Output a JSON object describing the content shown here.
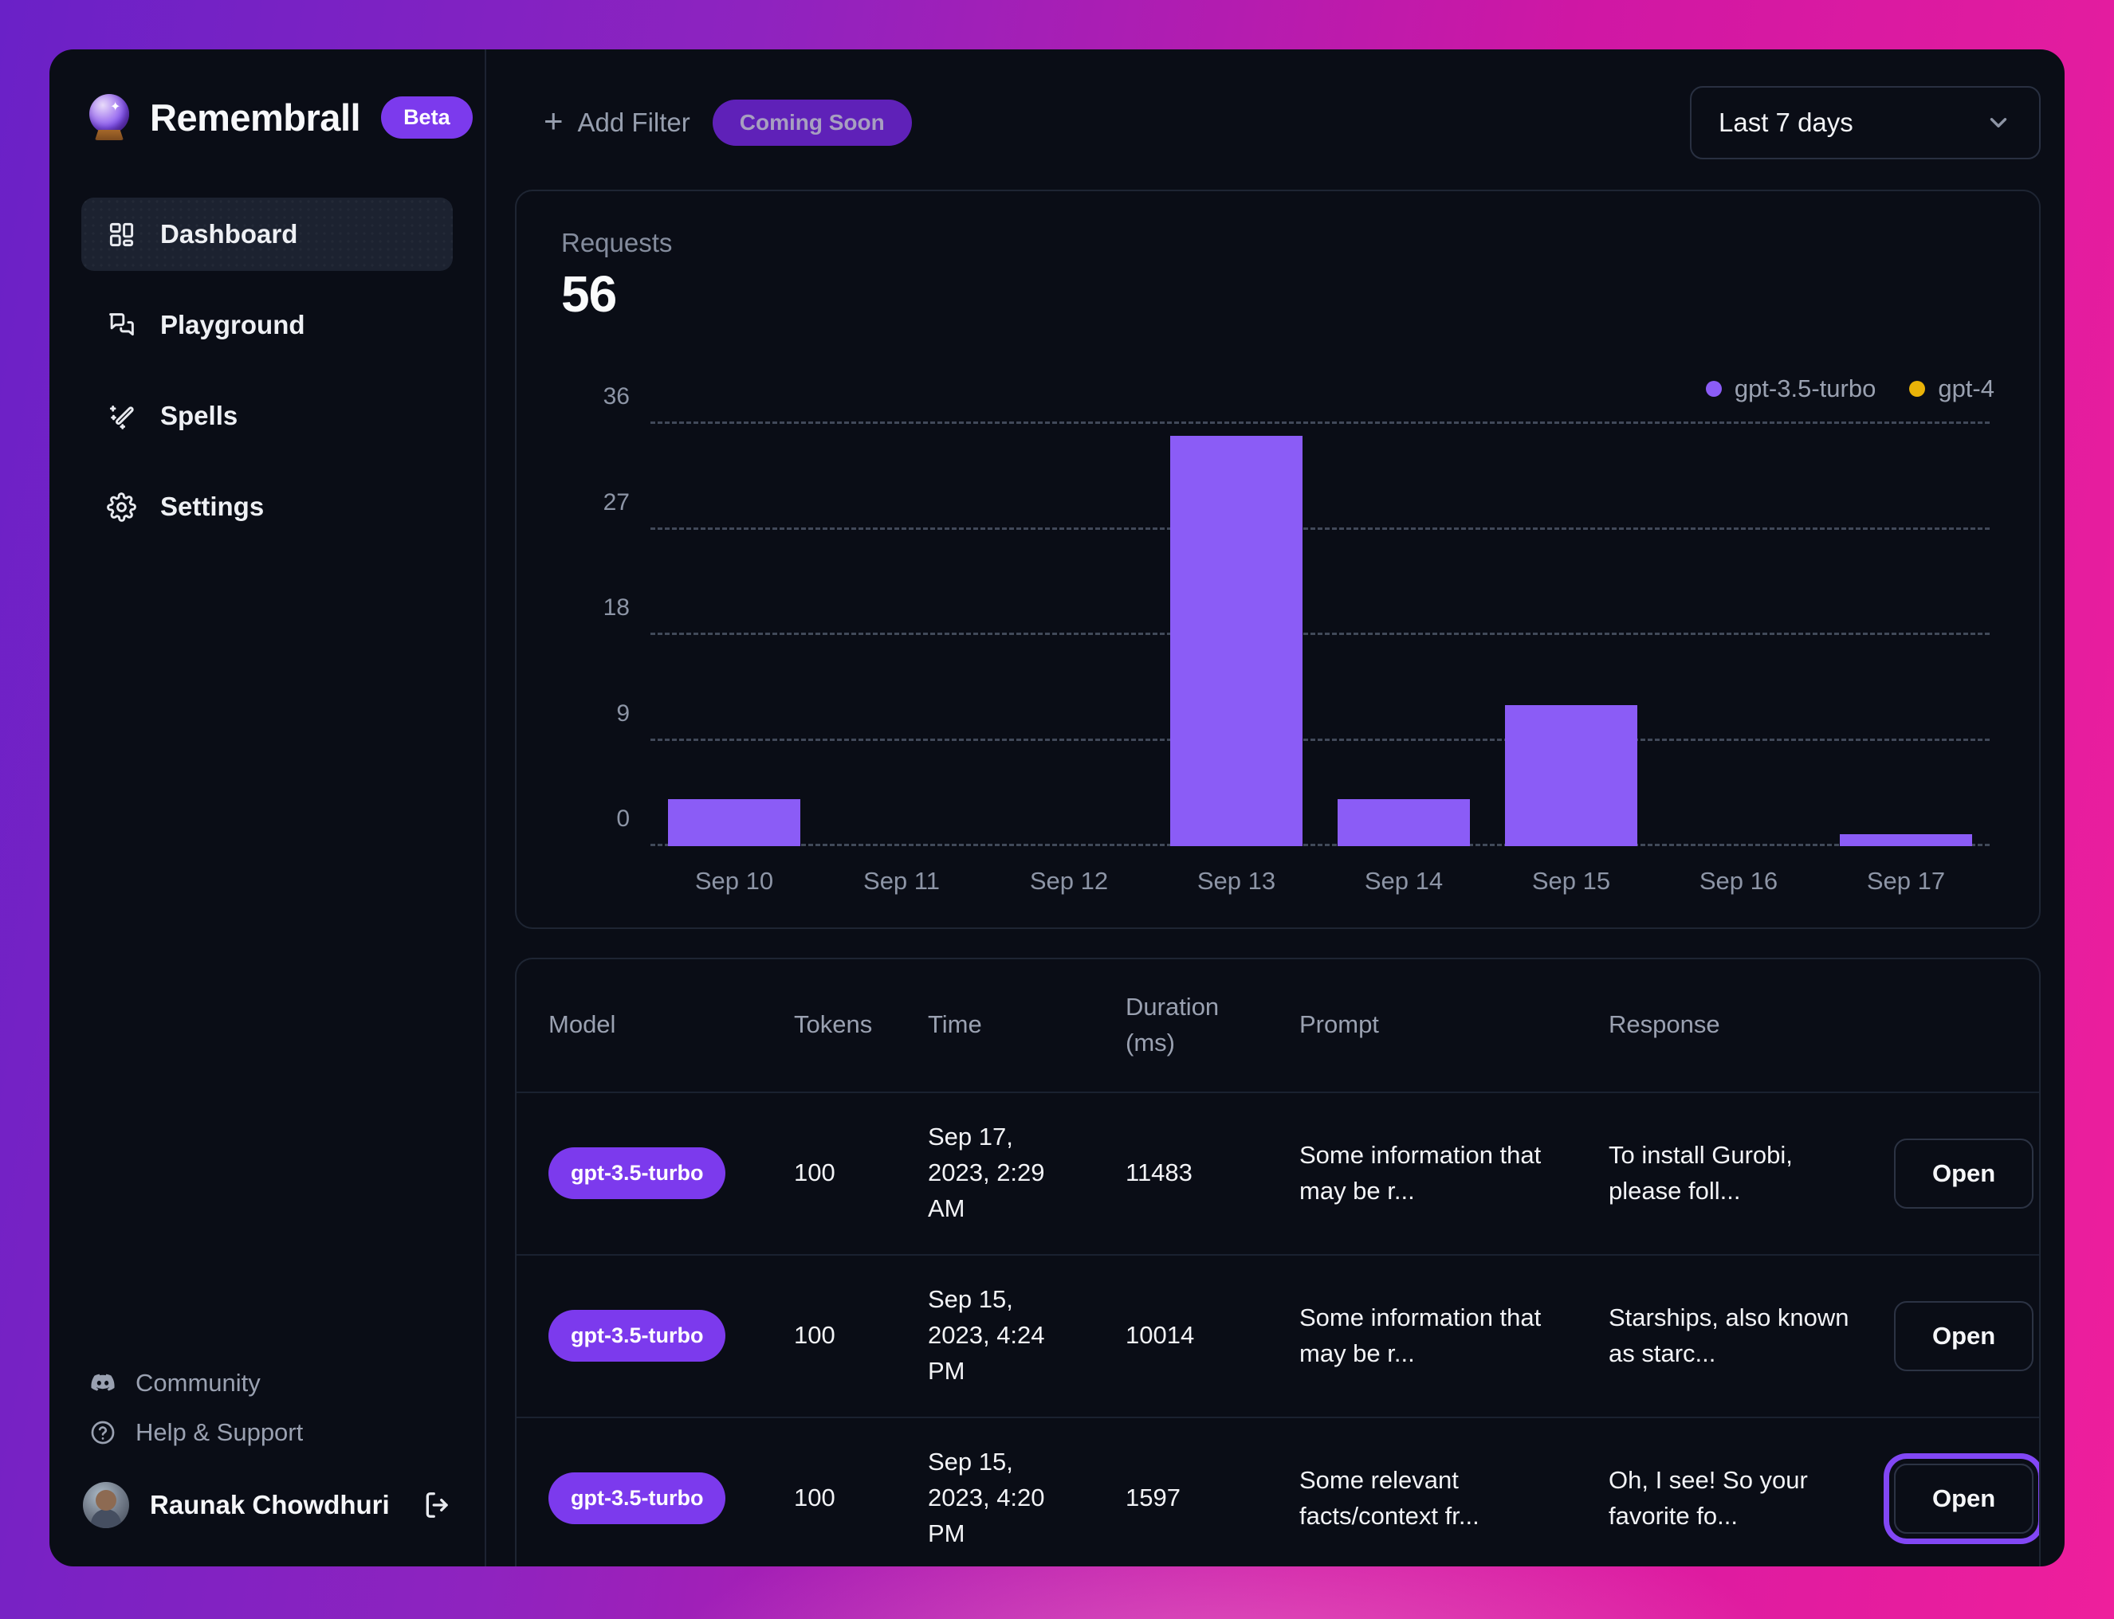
{
  "app": {
    "name": "Remembrall",
    "beta_badge": "Beta",
    "logo_icon": "crystal-ball-icon"
  },
  "sidebar": {
    "items": [
      {
        "label": "Dashboard",
        "icon": "dashboard-grid-icon",
        "active": true
      },
      {
        "label": "Playground",
        "icon": "chat-bubbles-icon",
        "active": false
      },
      {
        "label": "Spells",
        "icon": "magic-wand-icon",
        "active": false
      },
      {
        "label": "Settings",
        "icon": "gear-icon",
        "active": false
      }
    ],
    "footer_links": [
      {
        "label": "Community",
        "icon": "discord-icon"
      },
      {
        "label": "Help & Support",
        "icon": "help-circle-icon"
      }
    ],
    "user": {
      "name": "Raunak Chowdhuri",
      "logout_icon": "logout-icon"
    }
  },
  "topbar": {
    "add_filter_label": "Add Filter",
    "plus_icon": "+",
    "coming_soon_label": "Coming Soon",
    "date_range_value": "Last 7 days",
    "date_range_icon": "chevron-down-icon"
  },
  "chart_card": {
    "metric_label": "Requests",
    "metric_value": "56"
  },
  "chart_data": {
    "type": "bar",
    "title": "Requests",
    "total_requests": 56,
    "categories": [
      "Sep 10",
      "Sep 11",
      "Sep 12",
      "Sep 13",
      "Sep 14",
      "Sep 15",
      "Sep 16",
      "Sep 17"
    ],
    "series": [
      {
        "name": "gpt-3.5-turbo",
        "color": "#8b5cf6",
        "values": [
          4,
          0,
          0,
          35,
          4,
          12,
          0,
          1
        ]
      },
      {
        "name": "gpt-4",
        "color": "#eab308",
        "values": [
          0,
          0,
          0,
          0,
          0,
          0,
          0,
          0
        ]
      }
    ],
    "yticks": [
      0,
      9,
      18,
      27,
      36
    ],
    "ylim": [
      0,
      36
    ],
    "grid": "dashed-horizontal",
    "legend_position": "top-right"
  },
  "table": {
    "columns": [
      "Model",
      "Tokens",
      "Time",
      "Duration (ms)",
      "Prompt",
      "Response"
    ],
    "open_button_label": "Open",
    "rows": [
      {
        "model": "gpt-3.5-turbo",
        "tokens": "100",
        "time": "Sep 17, 2023, 2:29 AM",
        "duration_ms": "11483",
        "prompt": "Some information that may be r...",
        "response": "To install Gurobi, please foll...",
        "open_highlighted": false
      },
      {
        "model": "gpt-3.5-turbo",
        "tokens": "100",
        "time": "Sep 15, 2023, 4:24 PM",
        "duration_ms": "10014",
        "prompt": "Some information that may be r...",
        "response": "Starships, also known as starc...",
        "open_highlighted": false
      },
      {
        "model": "gpt-3.5-turbo",
        "tokens": "100",
        "time": "Sep 15, 2023, 4:20 PM",
        "duration_ms": "1597",
        "prompt": "Some relevant facts/context fr...",
        "response": "Oh, I see! So your favorite fo...",
        "open_highlighted": true
      }
    ]
  },
  "colors": {
    "accent_purple": "#7c3aed",
    "bar_purple": "#8b5cf6",
    "gpt4_yellow": "#eab308",
    "card_background": "#0a0d16",
    "border": "#1e2533",
    "muted_text": "#9aa1b1",
    "gradient_left": "#6a21c7",
    "gradient_right": "#ee1f9c"
  }
}
